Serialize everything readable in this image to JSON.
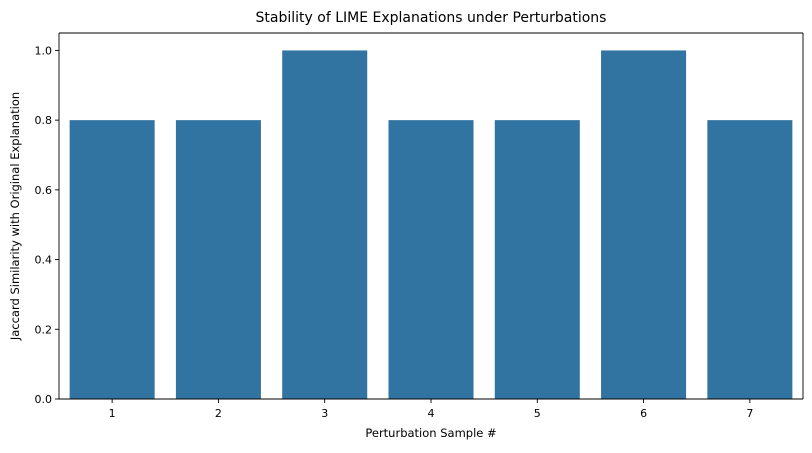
{
  "chart_data": {
    "type": "bar",
    "title": "Stability of LIME Explanations under Perturbations",
    "xlabel": "Perturbation Sample #",
    "ylabel": "Jaccard Similarity with Original Explanation",
    "categories": [
      "1",
      "2",
      "3",
      "4",
      "5",
      "6",
      "7"
    ],
    "values": [
      0.8,
      0.8,
      1.0,
      0.8,
      0.8,
      1.0,
      0.8
    ],
    "ylim": [
      0,
      1.05
    ],
    "yticks": [
      "0.0",
      "0.2",
      "0.4",
      "0.6",
      "0.8",
      "1.0"
    ],
    "grid": false,
    "colors": {
      "bar": "#3274a1",
      "axis": "#000000"
    }
  }
}
